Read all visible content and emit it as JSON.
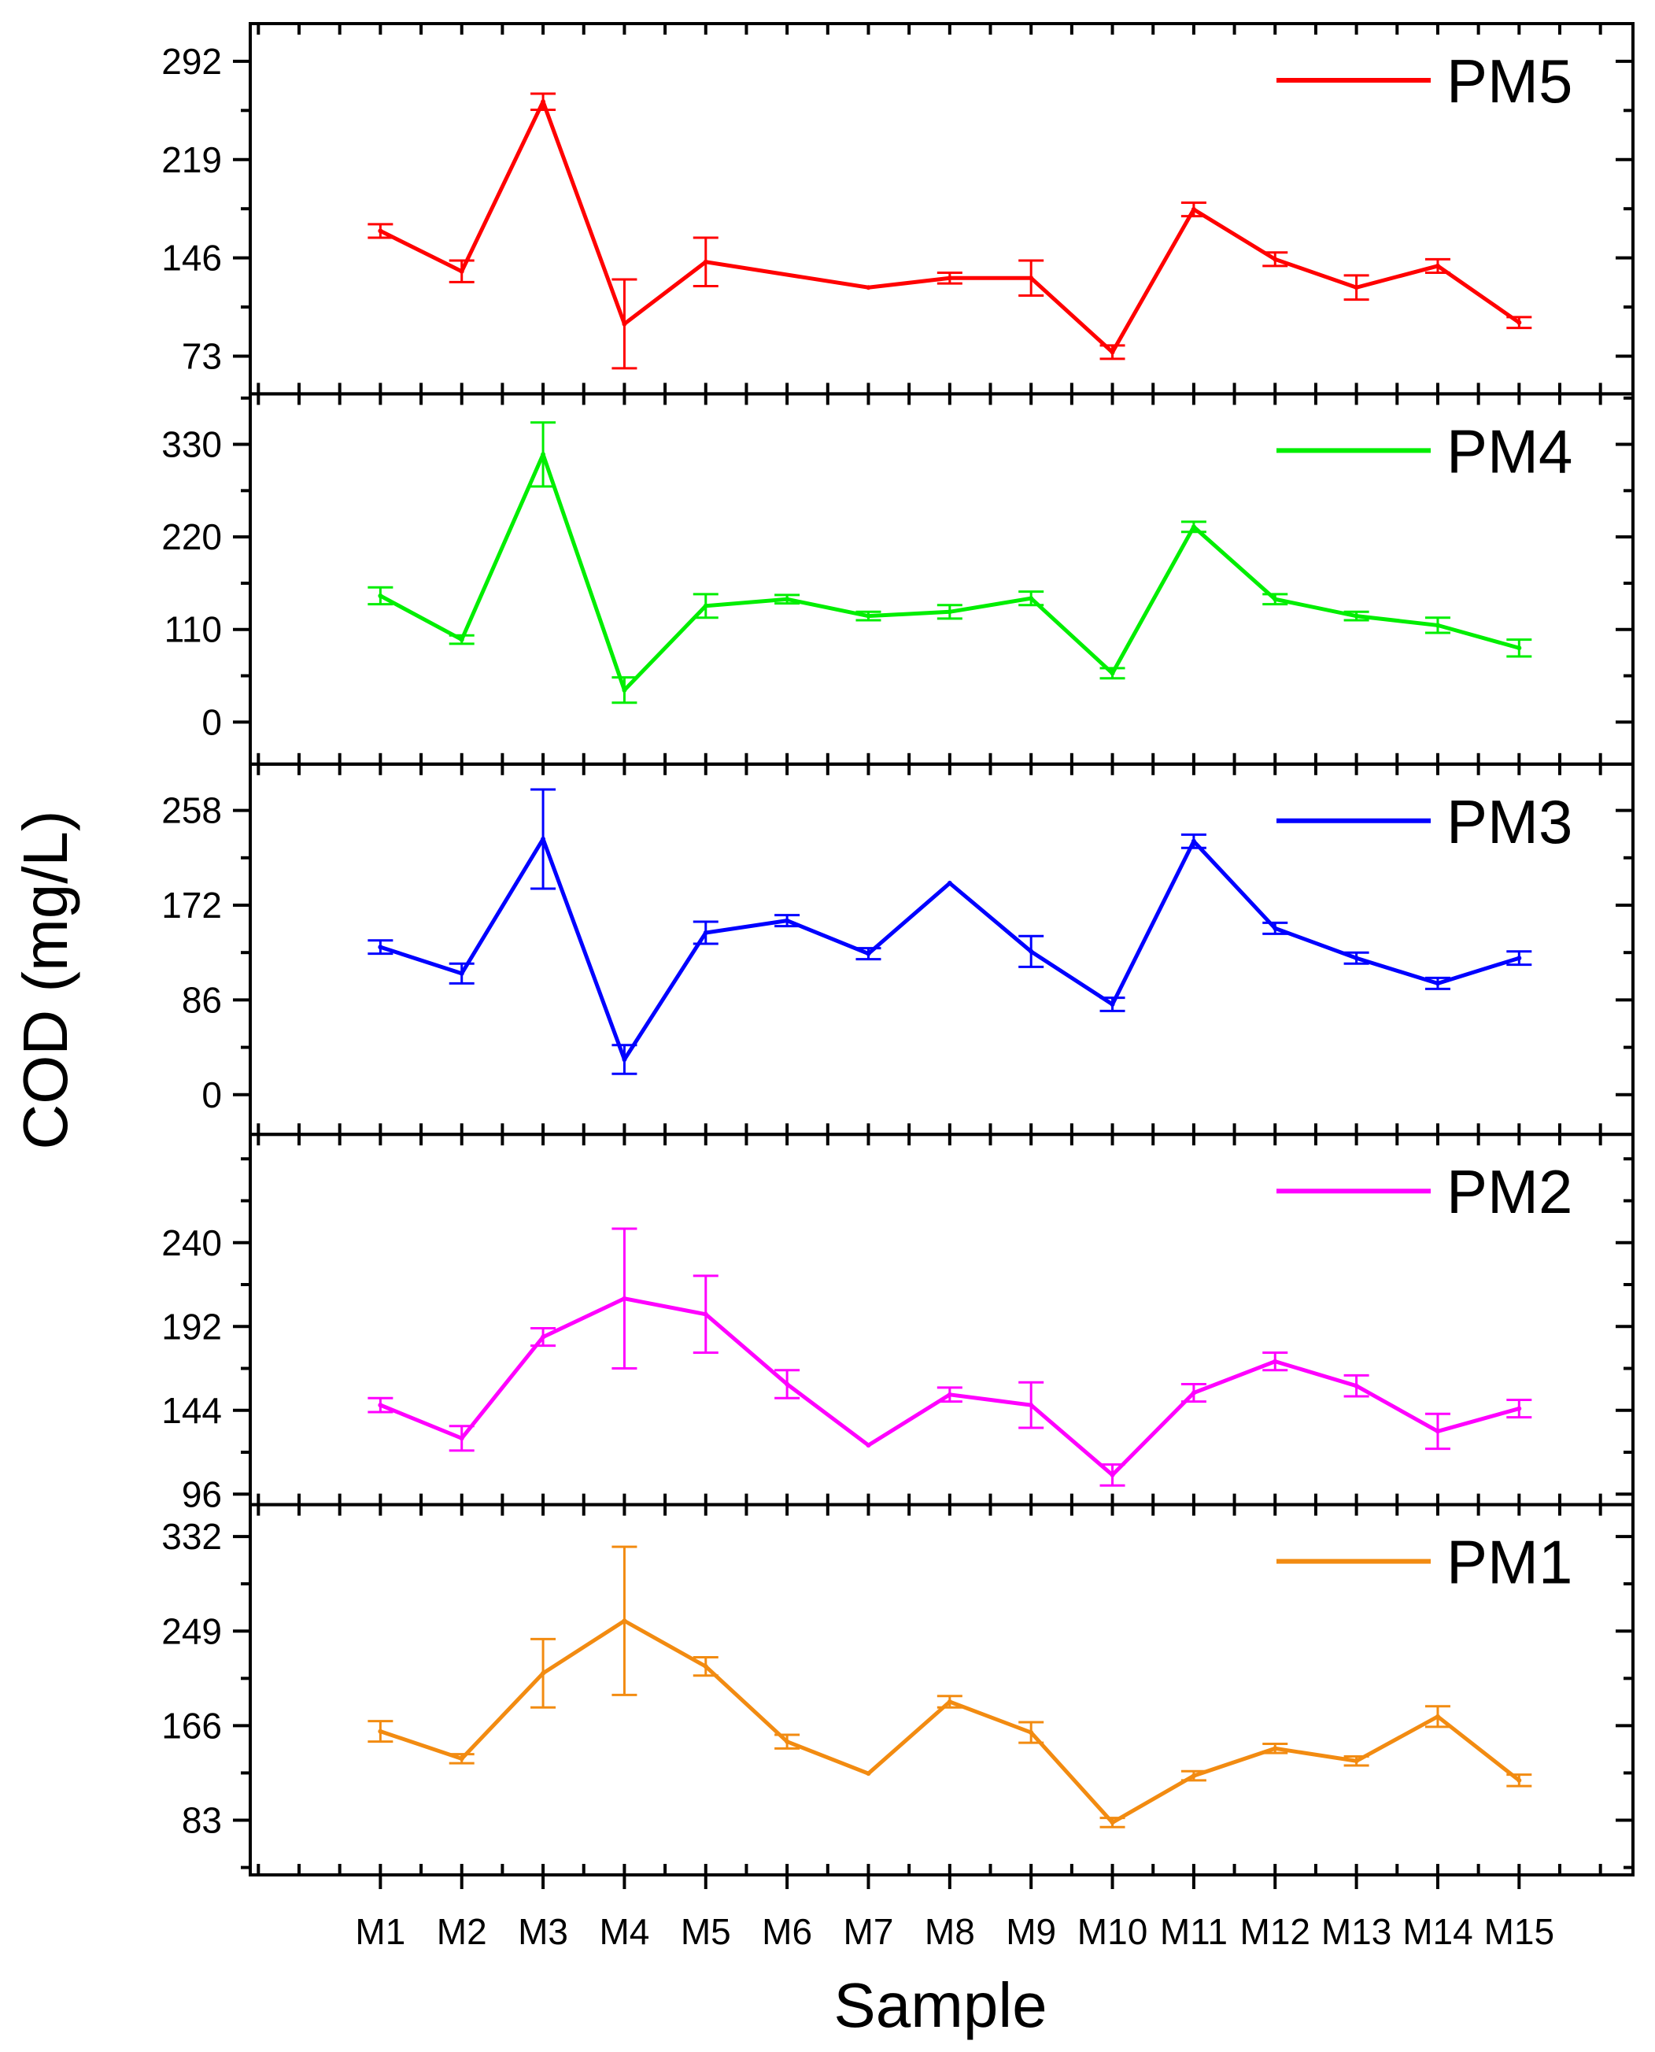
{
  "chart_data": {
    "type": "line",
    "xlabel": "Sample",
    "ylabel": "COD (mg/L)",
    "categories": [
      "M1",
      "M2",
      "M3",
      "M4",
      "M5",
      "M6",
      "M7",
      "M8",
      "M9",
      "M10",
      "M11",
      "M12",
      "M13",
      "M14",
      "M15"
    ],
    "panels": [
      {
        "name": "PM5",
        "color": "#ff0000",
        "ylim": [
          45,
          320
        ],
        "yticks": [
          73,
          146,
          219,
          292
        ],
        "values": [
          166,
          136,
          262,
          97,
          143,
          null,
          124,
          131,
          131,
          76,
          182,
          145,
          124,
          140,
          98
        ],
        "errors": [
          5,
          8,
          6,
          33,
          18,
          null,
          null,
          4,
          13,
          5,
          5,
          5,
          9,
          5,
          4
        ]
      },
      {
        "name": "PM4",
        "color": "#00ee00",
        "ylim": [
          -50,
          390
        ],
        "yticks": [
          0,
          110,
          220,
          330
        ],
        "values": [
          150,
          98,
          318,
          38,
          138,
          146,
          126,
          131,
          147,
          58,
          232,
          146,
          126,
          115,
          88
        ],
        "errors": [
          10,
          5,
          38,
          15,
          14,
          5,
          5,
          8,
          8,
          6,
          6,
          6,
          5,
          9,
          10
        ]
      },
      {
        "name": "PM3",
        "color": "#0000ff",
        "ylim": [
          -36,
          300
        ],
        "yticks": [
          0,
          86,
          172,
          258
        ],
        "values": [
          134,
          110,
          232,
          32,
          147,
          158,
          128,
          192,
          130,
          82,
          230,
          151,
          124,
          101,
          124
        ],
        "errors": [
          6,
          9,
          45,
          13,
          10,
          5,
          5,
          null,
          14,
          6,
          6,
          5,
          5,
          5,
          6
        ]
      },
      {
        "name": "PM2",
        "color": "#ff00ff",
        "ylim": [
          90,
          302
        ],
        "yticks": [
          96,
          144,
          192,
          240
        ],
        "values": [
          147,
          128,
          186,
          208,
          199,
          159,
          124,
          153,
          147,
          107,
          154,
          172,
          158,
          132,
          145
        ],
        "errors": [
          4,
          7,
          5,
          40,
          22,
          8,
          null,
          4,
          13,
          6,
          5,
          5,
          6,
          10,
          5
        ]
      },
      {
        "name": "PM1",
        "color": "#f28b11",
        "ylim": [
          35,
          360
        ],
        "yticks": [
          83,
          166,
          249,
          332
        ],
        "values": [
          161,
          137,
          212,
          258,
          218,
          152,
          124,
          187,
          160,
          81,
          122,
          146,
          135,
          174,
          118
        ],
        "errors": [
          9,
          4,
          30,
          65,
          8,
          6,
          null,
          5,
          9,
          4,
          4,
          4,
          4,
          9,
          5
        ]
      }
    ]
  }
}
